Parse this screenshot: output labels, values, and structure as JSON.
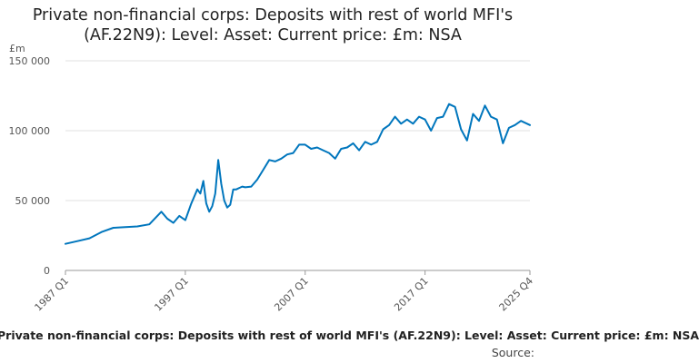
{
  "chart_data": {
    "type": "line",
    "title": "Private non-financial corps: Deposits with rest of world MFI's (AF.22N9): Level: Asset: Current price: £m: NSA",
    "ylabel": "£m",
    "xlabel": "",
    "ylim": [
      0,
      150000
    ],
    "yticks": [
      0,
      50000,
      100000,
      150000
    ],
    "ytick_labels": [
      "0",
      "50 000",
      "100 000",
      "150 000"
    ],
    "xticks": [
      "1987 Q1",
      "1997 Q1",
      "2007 Q1",
      "2017 Q1",
      "2025 Q4"
    ],
    "grid": true,
    "line_color": "#0076bd",
    "series": [
      {
        "x": [
          "1987 Q1",
          "1988 Q1",
          "1989 Q1",
          "1990 Q1",
          "1991 Q1",
          "1992 Q1",
          "1993 Q1",
          "1994 Q1",
          "1995 Q1",
          "1995 Q3",
          "1996 Q1",
          "1996 Q3",
          "1997 Q1",
          "1997 Q3",
          "1998 Q1",
          "1998 Q2",
          "1998 Q3",
          "1998 Q4",
          "1999 Q1",
          "1999 Q2",
          "1999 Q3",
          "1999 Q4",
          "2000 Q1",
          "2000 Q2",
          "2000 Q3",
          "2000 Q4",
          "2001 Q1",
          "2001 Q2",
          "2001 Q3",
          "2001 Q4",
          "2002 Q1",
          "2002 Q3",
          "2003 Q1",
          "2003 Q3",
          "2004 Q1",
          "2004 Q3",
          "2005 Q1",
          "2005 Q3",
          "2006 Q1",
          "2006 Q3",
          "2007 Q1",
          "2007 Q3",
          "2008 Q1",
          "2008 Q3",
          "2009 Q1",
          "2009 Q3",
          "2010 Q1",
          "2010 Q3",
          "2011 Q1",
          "2011 Q3",
          "2012 Q1",
          "2012 Q3",
          "2013 Q1",
          "2013 Q3",
          "2014 Q1",
          "2014 Q3",
          "2015 Q1",
          "2015 Q3",
          "2016 Q1",
          "2016 Q3",
          "2017 Q1",
          "2017 Q3",
          "2018 Q1",
          "2018 Q3",
          "2019 Q1",
          "2019 Q3",
          "2020 Q1",
          "2020 Q3",
          "2021 Q1",
          "2021 Q3",
          "2022 Q1",
          "2022 Q3",
          "2023 Q1",
          "2023 Q3",
          "2024 Q1",
          "2024 Q3",
          "2025 Q1",
          "2025 Q4"
        ],
        "values": [
          19000,
          21000,
          23000,
          27500,
          30500,
          31000,
          31500,
          33000,
          42000,
          37000,
          34000,
          39000,
          36000,
          48000,
          58000,
          55000,
          64000,
          48000,
          42000,
          46000,
          55000,
          79000,
          62000,
          50000,
          45000,
          47000,
          58000,
          58000,
          59000,
          60000,
          59500,
          60000,
          65000,
          72000,
          79000,
          78000,
          80000,
          83000,
          84000,
          90000,
          90000,
          87000,
          88000,
          86000,
          84000,
          80000,
          87000,
          88000,
          91000,
          86000,
          92000,
          90000,
          92000,
          101000,
          104000,
          110000,
          105000,
          108000,
          105000,
          110000,
          108000,
          100000,
          109000,
          110000,
          119000,
          117000,
          101000,
          93000,
          112000,
          107000,
          118000,
          110000,
          108000,
          91000,
          102000,
          104000,
          107000,
          104000
        ]
      }
    ]
  },
  "footer": {
    "caption": "Private non-financial corps: Deposits with rest of world MFI's (AF.22N9): Level: Asset: Current price: £m: NSA",
    "source_label": "Source:"
  }
}
